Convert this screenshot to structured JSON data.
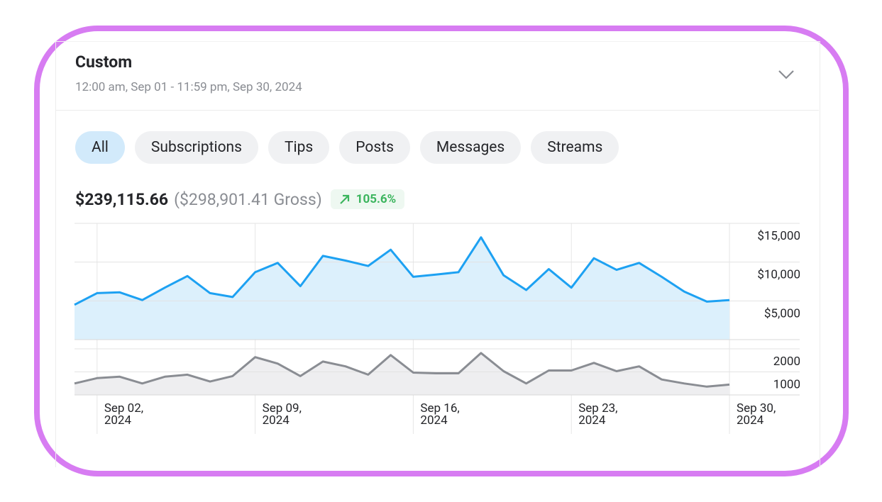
{
  "header": {
    "title": "Custom",
    "subtitle": "12:00 am, Sep 01 - 11:59 pm, Sep 30, 2024"
  },
  "tabs": [
    "All",
    "Subscriptions",
    "Tips",
    "Posts",
    "Messages",
    "Streams"
  ],
  "summary": {
    "net": "$239,115.66",
    "gross": "($298,901.41 Gross)",
    "change": "105.6%"
  },
  "chart_data": [
    {
      "type": "area",
      "x": [
        "2024-09-01",
        "2024-09-02",
        "2024-09-03",
        "2024-09-04",
        "2024-09-05",
        "2024-09-06",
        "2024-09-07",
        "2024-09-08",
        "2024-09-09",
        "2024-09-10",
        "2024-09-11",
        "2024-09-12",
        "2024-09-13",
        "2024-09-14",
        "2024-09-15",
        "2024-09-16",
        "2024-09-17",
        "2024-09-18",
        "2024-09-19",
        "2024-09-20",
        "2024-09-21",
        "2024-09-22",
        "2024-09-23",
        "2024-09-24",
        "2024-09-25",
        "2024-09-26",
        "2024-09-27",
        "2024-09-28",
        "2024-09-29",
        "2024-09-30"
      ],
      "xlim": [
        "2024-09-01",
        "2024-09-30"
      ],
      "series": [
        {
          "color": "#1da1f2",
          "fill": "#dcf0fc",
          "values": [
            4500,
            6000,
            6100,
            5100,
            6700,
            8200,
            6000,
            5500,
            8700,
            9900,
            6900,
            10800,
            10200,
            9500,
            11600,
            8100,
            8400,
            8700,
            13200,
            8300,
            6400,
            9100,
            6700,
            10500,
            9000,
            9900,
            8100,
            6200,
            4900,
            5100
          ]
        }
      ],
      "ylim": [
        0,
        15000
      ],
      "yticks": [
        {
          "value": 5000,
          "label": "$5,000"
        },
        {
          "value": 10000,
          "label": "$10,000"
        },
        {
          "value": 15000,
          "label": "$15,000"
        }
      ],
      "grid": true
    },
    {
      "type": "area",
      "x": [
        "2024-09-01",
        "2024-09-02",
        "2024-09-03",
        "2024-09-04",
        "2024-09-05",
        "2024-09-06",
        "2024-09-07",
        "2024-09-08",
        "2024-09-09",
        "2024-09-10",
        "2024-09-11",
        "2024-09-12",
        "2024-09-13",
        "2024-09-14",
        "2024-09-15",
        "2024-09-16",
        "2024-09-17",
        "2024-09-18",
        "2024-09-19",
        "2024-09-20",
        "2024-09-21",
        "2024-09-22",
        "2024-09-23",
        "2024-09-24",
        "2024-09-25",
        "2024-09-26",
        "2024-09-27",
        "2024-09-28",
        "2024-09-29",
        "2024-09-30"
      ],
      "xlim": [
        "2024-09-01",
        "2024-09-30"
      ],
      "series": [
        {
          "color": "#8a8d93",
          "fill": "#eeeef0",
          "values": [
            500,
            730,
            790,
            500,
            790,
            880,
            580,
            820,
            1640,
            1360,
            820,
            1450,
            1240,
            880,
            1730,
            970,
            940,
            940,
            1820,
            1030,
            500,
            1060,
            1060,
            1390,
            1030,
            1240,
            670,
            500,
            360,
            450
          ]
        }
      ],
      "ylim": [
        0,
        2000
      ],
      "yticks": [
        1000,
        2000
      ],
      "xticks": [
        {
          "value": "2024-09-02",
          "label": "Sep 02, 2024"
        },
        {
          "value": "2024-09-09",
          "label": "Sep 09, 2024"
        },
        {
          "value": "2024-09-16",
          "label": "Sep 16, 2024"
        },
        {
          "value": "2024-09-23",
          "label": "Sep 23, 2024"
        },
        {
          "value": "2024-09-30",
          "label": "Sep 30, 2024"
        }
      ],
      "grid": true
    }
  ]
}
